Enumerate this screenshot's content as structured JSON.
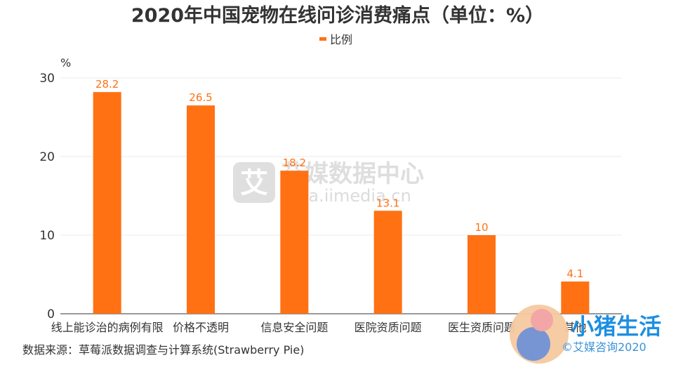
{
  "title": "2020年中国宠物在线问诊消费痛点（单位：%）",
  "legend": "比例",
  "y_unit": "%",
  "source": "数据来源：草莓派数据调查与计算系统(Strawberry Pie)",
  "watermark": {
    "mark": "艾",
    "name": "艾媒数据中心",
    "url": "data.iimedia.cn"
  },
  "logo": {
    "text": "小猪生活",
    "copyright": "©艾媒咨询2020"
  },
  "colors": {
    "bar": "#ff7113",
    "label": "#ff7113",
    "grid": "#ebebeb",
    "axis": "#333333"
  },
  "chart_data": {
    "type": "bar",
    "categories": [
      "线上能诊治的病例有限",
      "价格不透明",
      "信息安全问题",
      "医院资质问题",
      "医生资质问题",
      "其他"
    ],
    "series": [
      {
        "name": "比例",
        "values": [
          28.2,
          26.5,
          18.2,
          13.1,
          10,
          4.1
        ]
      }
    ],
    "data_labels": [
      "28.2",
      "26.5",
      "18.2",
      "13.1",
      "10",
      "4.1"
    ],
    "y_ticks": [
      "0",
      "10",
      "20",
      "30"
    ],
    "ylim": [
      0,
      30
    ],
    "grid": true,
    "legend_position": "top-center"
  }
}
